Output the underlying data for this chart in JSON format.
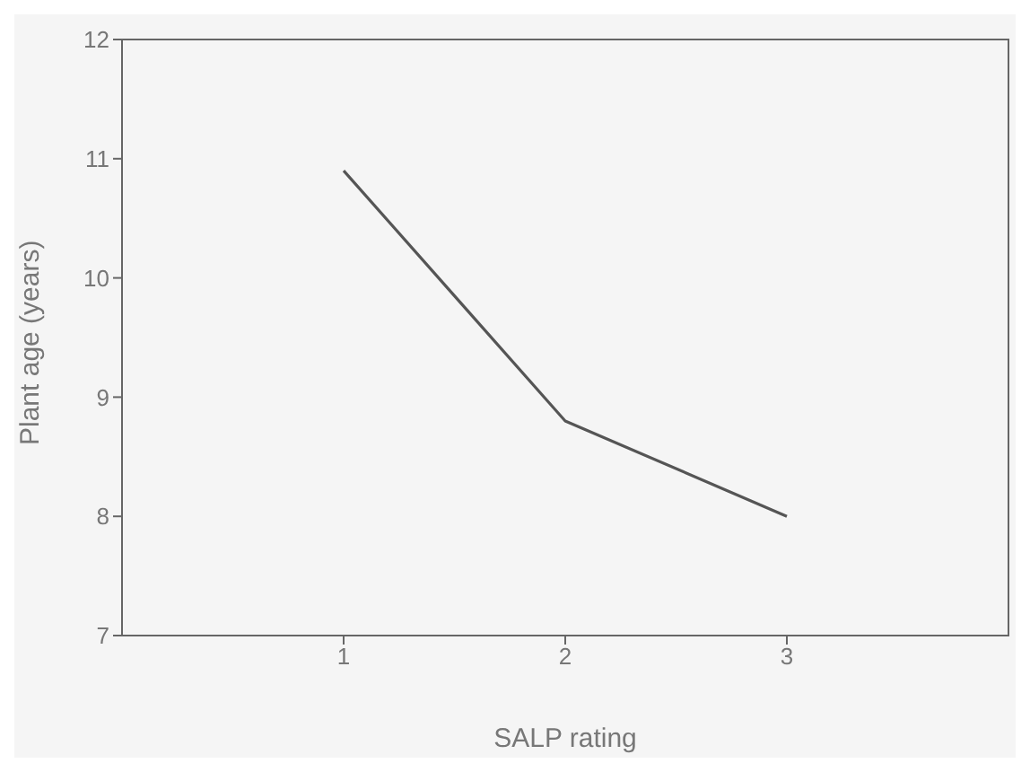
{
  "chart_data": {
    "type": "line",
    "xlabel": "SALP rating",
    "ylabel": "Plant age (years)",
    "x": [
      1,
      2,
      3
    ],
    "series": [
      {
        "color": "#555555",
        "values": [
          10.9,
          8.8,
          8.0
        ]
      }
    ],
    "xlim": [
      0,
      4
    ],
    "xticks": [
      1,
      2,
      3
    ],
    "ylim": [
      7,
      12
    ],
    "yticks": [
      7,
      8,
      9,
      10,
      11,
      12
    ],
    "grid": false,
    "legend": false,
    "marker": "none",
    "line_style": "solid"
  }
}
